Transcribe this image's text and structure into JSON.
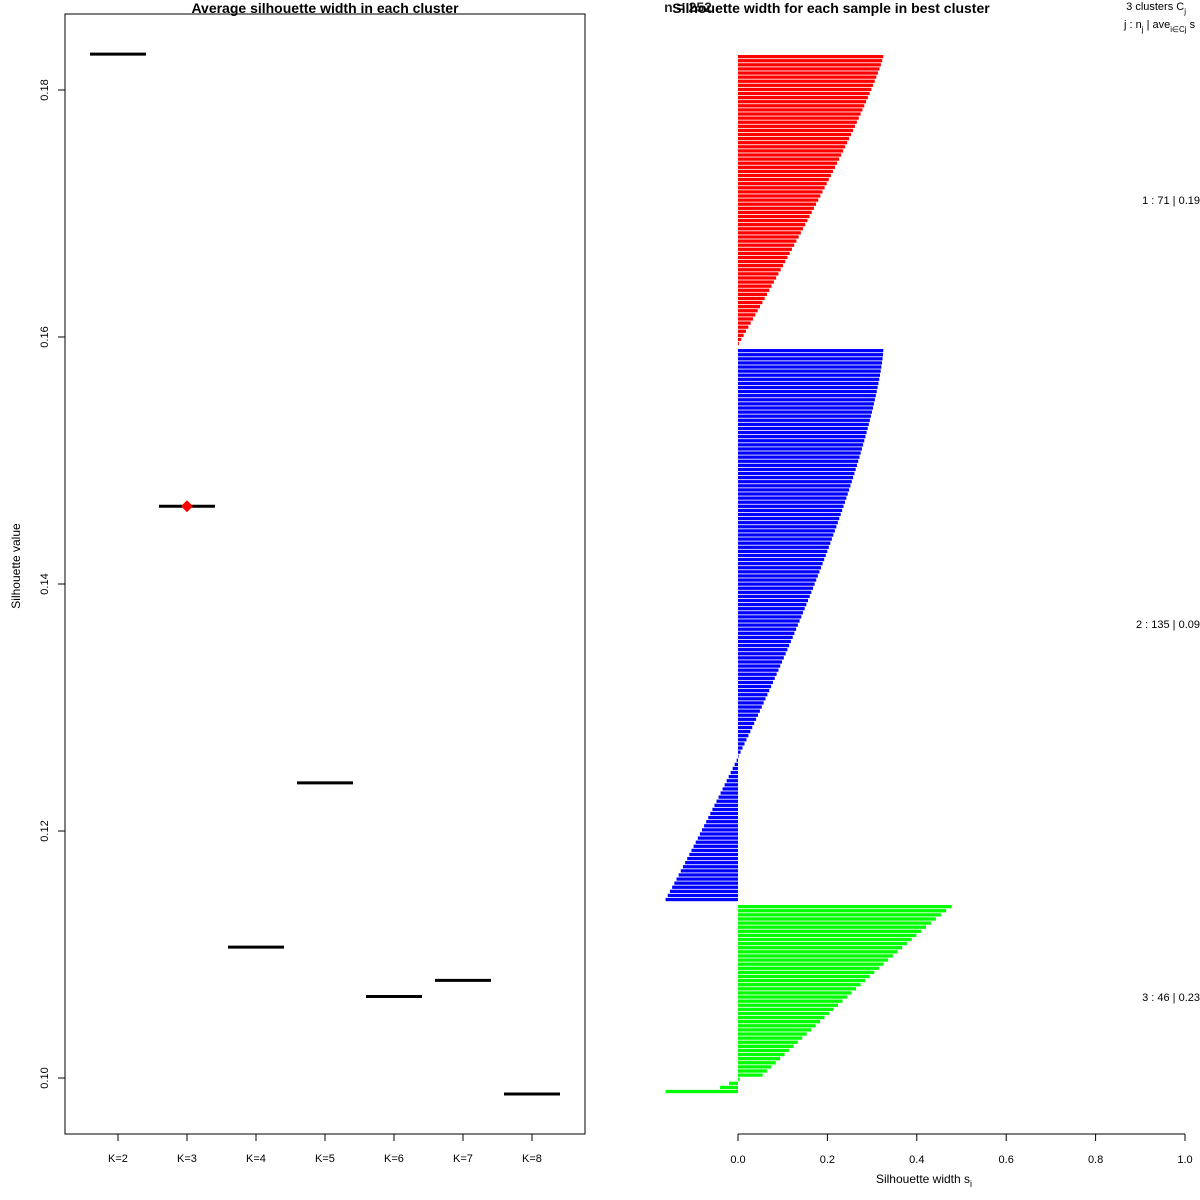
{
  "chart_data": [
    {
      "type": "scatter",
      "title": "Average silhouette width in each cluster",
      "xlabel": "",
      "ylabel": "Silhouette value",
      "categories": [
        "K=2",
        "K=3",
        "K=4",
        "K=5",
        "K=6",
        "K=7",
        "K=8"
      ],
      "values": [
        0.1829,
        0.1463,
        0.1106,
        0.1239,
        0.1066,
        0.1079,
        0.0987
      ],
      "best_k": "K=3",
      "best_marker_color": "#ff0000",
      "ylim": [
        0.0957,
        0.1891
      ],
      "yticks": [
        0.1,
        0.12,
        0.14,
        0.16,
        0.18
      ],
      "ytick_labels": [
        "0.10",
        "0.12",
        "0.14",
        "0.16",
        "0.18"
      ],
      "grid": false
    },
    {
      "type": "bar",
      "orientation": "horizontal",
      "title": "Silhouette width for each sample in best cluster",
      "title_overlap_text": "n = 252",
      "xlabel": "Silhouette width s",
      "xlabel_sub": "i",
      "ylabel": "",
      "xlim": [
        -0.163,
        1.0
      ],
      "xticks": [
        0.0,
        0.2,
        0.4,
        0.6,
        0.8,
        1.0
      ],
      "xtick_labels": [
        "0.0",
        "0.2",
        "0.4",
        "0.6",
        "0.8",
        "1.0"
      ],
      "legend_header": {
        "line1": "3  clusters  C",
        "line1_sub": "j",
        "line2_a": "j :  n",
        "line2_sub_a": "j",
        "line2_b": " | ave",
        "line2_sub_b": "i∈Cj",
        "line2_c": "  s"
      },
      "series": [
        {
          "name": "1",
          "color": "#ff0000",
          "count": 71,
          "summary": "1 :   71  |  0.19",
          "max": 0.325,
          "min": 0.002
        },
        {
          "name": "2",
          "color": "#0000ff",
          "count": 135,
          "summary": "2 :   135  |  0.09",
          "max": 0.325,
          "min": -0.162
        },
        {
          "name": "3",
          "color": "#00ff00",
          "count": 46,
          "summary": "3 :   46  |  0.23",
          "max": 0.478,
          "min": -0.162
        }
      ]
    }
  ]
}
